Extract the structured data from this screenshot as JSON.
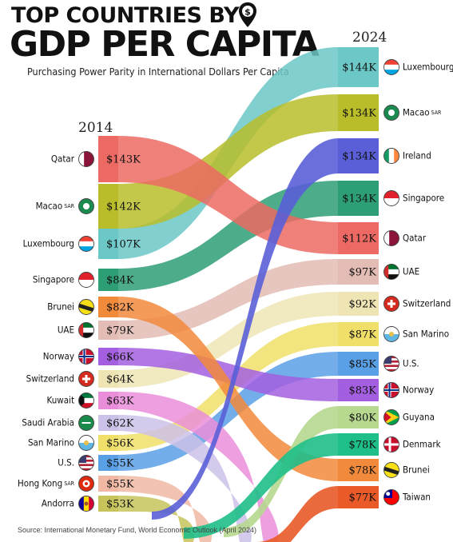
{
  "header": {
    "title_line1": "TOP COUNTRIES BY",
    "title_line2": "GDP PER CAPITA",
    "subtitle": "Purchasing Power Parity in International Dollars Per Capita",
    "source": "Source: International Monetary Fund, World Economic Outlook (April 2024)"
  },
  "chart_data": {
    "type": "bump",
    "start_year": "2014",
    "end_year": "2024",
    "left": [
      {
        "country": "Qatar",
        "value": "$143K",
        "color": "#ec6a63",
        "flag": "qatar"
      },
      {
        "country": "Macao",
        "suffix": "SAR",
        "value": "$142K",
        "color": "#b9bd2a",
        "flag": "macao"
      },
      {
        "country": "Luxembourg",
        "value": "$107K",
        "color": "#6cc7c7",
        "flag": "luxembourg"
      },
      {
        "country": "Singapore",
        "value": "$84K",
        "color": "#2e9e74",
        "flag": "singapore"
      },
      {
        "country": "Brunei",
        "value": "$82K",
        "color": "#f28a3c",
        "flag": "brunei"
      },
      {
        "country": "UAE",
        "value": "$79K",
        "color": "#e3bcb5",
        "flag": "uae"
      },
      {
        "country": "Norway",
        "value": "$66K",
        "color": "#a35fdf",
        "flag": "norway"
      },
      {
        "country": "Switzerland",
        "value": "$64K",
        "color": "#efe5b4",
        "flag": "switzerland"
      },
      {
        "country": "Kuwait",
        "value": "$63K",
        "color": "#ea8ed9",
        "flag": "kuwait"
      },
      {
        "country": "Saudi Arabia",
        "value": "$62K",
        "color": "#ccc1e8",
        "flag": "saudi"
      },
      {
        "country": "San Marino",
        "value": "$56K",
        "color": "#f0e06a",
        "flag": "sanmarino"
      },
      {
        "country": "U.S.",
        "value": "$55K",
        "color": "#5aa0e6",
        "flag": "us"
      },
      {
        "country": "Hong Kong",
        "suffix": "SAR",
        "value": "$55K",
        "color": "#f1b8a3",
        "flag": "hongkong"
      },
      {
        "country": "Andorra",
        "value": "$53K",
        "color": "#c6c45a",
        "flag": "andorra"
      }
    ],
    "right": [
      {
        "country": "Luxembourg",
        "value": "$144K",
        "color": "#6cc7c7",
        "flag": "luxembourg"
      },
      {
        "country": "Macao",
        "suffix": "SAR",
        "value": "$134K",
        "color": "#b9bd2a",
        "flag": "macao"
      },
      {
        "country": "Ireland",
        "value": "$134K",
        "color": "#5a5fd8",
        "flag": "ireland"
      },
      {
        "country": "Singapore",
        "value": "$134K",
        "color": "#2e9e74",
        "flag": "singapore"
      },
      {
        "country": "Qatar",
        "value": "$112K",
        "color": "#ec6a63",
        "flag": "qatar"
      },
      {
        "country": "UAE",
        "value": "$97K",
        "color": "#e3bcb5",
        "flag": "uae"
      },
      {
        "country": "Switzerland",
        "value": "$92K",
        "color": "#efe5b4",
        "flag": "switzerland"
      },
      {
        "country": "San Marino",
        "value": "$87K",
        "color": "#f0e06a",
        "flag": "sanmarino"
      },
      {
        "country": "U.S.",
        "value": "$85K",
        "color": "#5aa0e6",
        "flag": "us"
      },
      {
        "country": "Norway",
        "value": "$83K",
        "color": "#a35fdf",
        "flag": "norway"
      },
      {
        "country": "Guyana",
        "value": "$80K",
        "color": "#b6d88f",
        "flag": "guyana"
      },
      {
        "country": "Denmark",
        "value": "$78K",
        "color": "#1fbf8a",
        "flag": "denmark"
      },
      {
        "country": "Brunei",
        "value": "$78K",
        "color": "#f28a3c",
        "flag": "brunei"
      },
      {
        "country": "Taiwan",
        "value": "$77K",
        "color": "#e95a28",
        "flag": "taiwan"
      }
    ],
    "links": [
      {
        "from": "Luxembourg",
        "to": "Luxembourg"
      },
      {
        "from": "Macao",
        "to": "Macao"
      },
      {
        "from": "Singapore",
        "to": "Singapore"
      },
      {
        "from": "Qatar",
        "to": "Qatar"
      },
      {
        "from": "UAE",
        "to": "UAE"
      },
      {
        "from": "Switzerland",
        "to": "Switzerland"
      },
      {
        "from": "San Marino",
        "to": "San Marino"
      },
      {
        "from": "U.S.",
        "to": "U.S."
      },
      {
        "from": "Norway",
        "to": "Norway"
      },
      {
        "from": "Brunei",
        "to": "Brunei"
      }
    ]
  }
}
